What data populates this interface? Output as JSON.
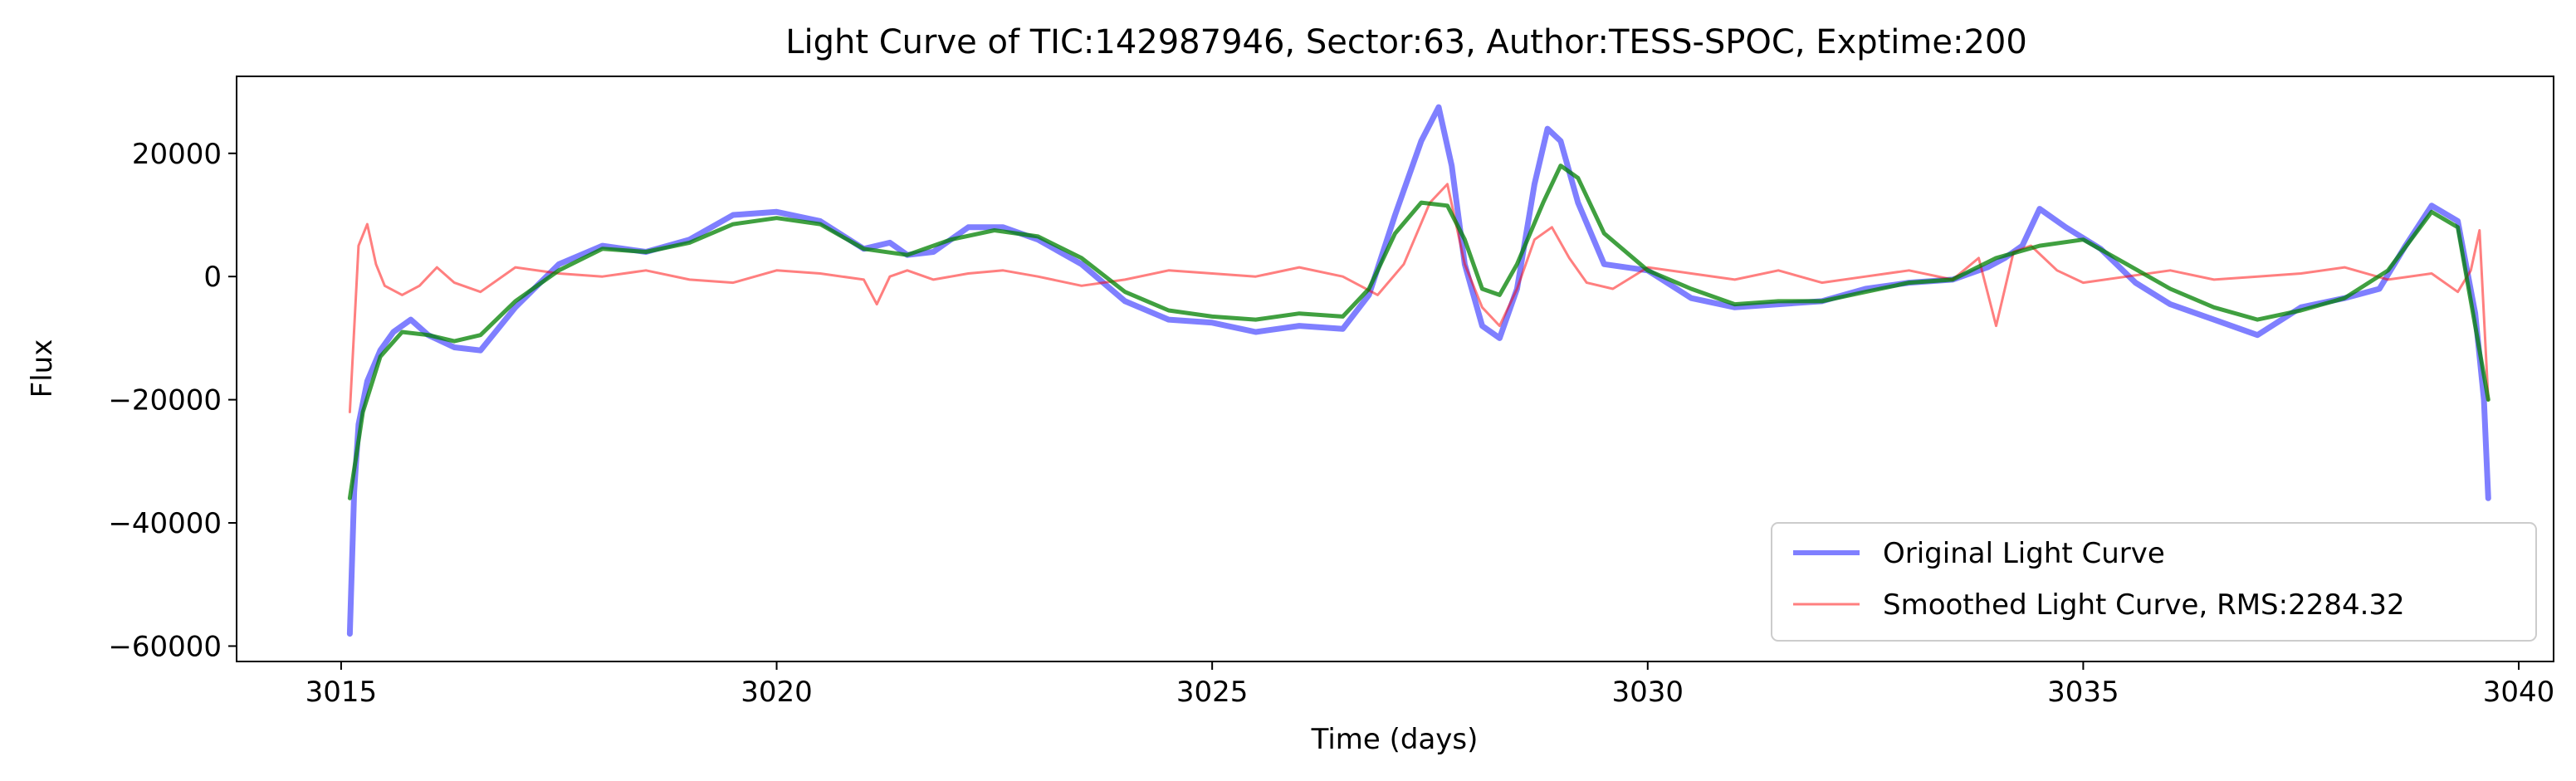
{
  "chart_data": {
    "type": "line",
    "title": "Light Curve of TIC:142987946, Sector:63, Author:TESS-SPOC, Exptime:200",
    "xlabel": "Time (days)",
    "ylabel": "Flux",
    "xlim": [
      3013.8,
      3040.4
    ],
    "ylim": [
      -62500,
      32500
    ],
    "xticks": [
      3015,
      3020,
      3025,
      3030,
      3035,
      3040
    ],
    "yticks": [
      -60000,
      -40000,
      -20000,
      0,
      20000
    ],
    "grid": false,
    "legend_position": "lower right",
    "series": [
      {
        "name": "Original Light Curve",
        "color": "#0000ff",
        "opacity": 0.5,
        "x": [
          3015.1,
          3015.15,
          3015.2,
          3015.3,
          3015.45,
          3015.6,
          3015.8,
          3016.0,
          3016.3,
          3016.6,
          3017.0,
          3017.5,
          3018.0,
          3018.5,
          3019.0,
          3019.5,
          3020.0,
          3020.5,
          3021.0,
          3021.3,
          3021.5,
          3021.8,
          3022.2,
          3022.6,
          3023.0,
          3023.5,
          3024.0,
          3024.5,
          3025.0,
          3025.5,
          3026.0,
          3026.5,
          3026.8,
          3027.1,
          3027.4,
          3027.6,
          3027.75,
          3027.9,
          3028.1,
          3028.3,
          3028.5,
          3028.7,
          3028.85,
          3029.0,
          3029.2,
          3029.5,
          3030.0,
          3030.5,
          3031.0,
          3031.5,
          3032.0,
          3032.5,
          3033.0,
          3033.5,
          3033.9,
          3034.1,
          3034.3,
          3034.5,
          3034.8,
          3035.2,
          3035.6,
          3036.0,
          3036.5,
          3037.0,
          3037.5,
          3038.0,
          3038.4,
          3038.7,
          3039.0,
          3039.3,
          3039.5,
          3039.6,
          3039.65
        ],
        "y": [
          -58000,
          -35000,
          -24000,
          -17000,
          -12000,
          -9000,
          -7000,
          -9500,
          -11500,
          -12000,
          -5000,
          2000,
          5000,
          4000,
          6000,
          10000,
          10500,
          9000,
          4500,
          5500,
          3500,
          4000,
          8000,
          8000,
          6000,
          2000,
          -4000,
          -7000,
          -7500,
          -9000,
          -8000,
          -8500,
          -3000,
          10000,
          22000,
          27500,
          18000,
          2000,
          -8000,
          -10000,
          -2000,
          15000,
          24000,
          22000,
          12000,
          2000,
          1000,
          -3500,
          -5000,
          -4500,
          -4000,
          -2000,
          -1000,
          -500,
          1500,
          3000,
          5000,
          11000,
          8000,
          4500,
          -1000,
          -4500,
          -7000,
          -9500,
          -5000,
          -3500,
          -2000,
          5000,
          11500,
          9000,
          -6000,
          -20000,
          -36000
        ]
      },
      {
        "name": "Smoothed Light Curve, RMS:2284.32",
        "color": "#ff0000",
        "opacity": 0.5,
        "x": [
          3015.1,
          3015.2,
          3015.3,
          3015.4,
          3015.5,
          3015.7,
          3015.9,
          3016.1,
          3016.3,
          3016.6,
          3017.0,
          3017.5,
          3018.0,
          3018.5,
          3019.0,
          3019.5,
          3020.0,
          3020.5,
          3021.0,
          3021.15,
          3021.3,
          3021.5,
          3021.8,
          3022.2,
          3022.6,
          3023.0,
          3023.5,
          3024.0,
          3024.5,
          3025.0,
          3025.5,
          3026.0,
          3026.5,
          3026.9,
          3027.2,
          3027.5,
          3027.7,
          3027.9,
          3028.1,
          3028.3,
          3028.5,
          3028.7,
          3028.9,
          3029.1,
          3029.3,
          3029.6,
          3030.0,
          3030.5,
          3031.0,
          3031.5,
          3032.0,
          3032.5,
          3033.0,
          3033.5,
          3033.8,
          3034.0,
          3034.2,
          3034.4,
          3034.7,
          3035.0,
          3035.5,
          3036.0,
          3036.5,
          3037.0,
          3037.5,
          3038.0,
          3038.5,
          3039.0,
          3039.3,
          3039.45,
          3039.55,
          3039.65
        ],
        "y": [
          -22000,
          5000,
          8500,
          2000,
          -1500,
          -3000,
          -1500,
          1500,
          -1000,
          -2500,
          1500,
          500,
          0,
          1000,
          -500,
          -1000,
          1000,
          500,
          -500,
          -4500,
          0,
          1000,
          -500,
          500,
          1000,
          0,
          -1500,
          -500,
          1000,
          500,
          0,
          1500,
          0,
          -3000,
          2000,
          12000,
          15000,
          2000,
          -5000,
          -8000,
          -2000,
          6000,
          8000,
          3000,
          -1000,
          -2000,
          1500,
          500,
          -500,
          1000,
          -1000,
          0,
          1000,
          -500,
          3000,
          -8000,
          4000,
          5000,
          1000,
          -1000,
          0,
          1000,
          -500,
          0,
          500,
          1500,
          -500,
          500,
          -2500,
          1000,
          7500,
          -20000
        ]
      },
      {
        "name": "",
        "color": "#008000",
        "opacity": 0.75,
        "x": [
          3015.1,
          3015.25,
          3015.45,
          3015.7,
          3016.0,
          3016.3,
          3016.6,
          3017.0,
          3017.5,
          3018.0,
          3018.5,
          3019.0,
          3019.5,
          3020.0,
          3020.5,
          3021.0,
          3021.5,
          3022.0,
          3022.5,
          3023.0,
          3023.5,
          3024.0,
          3024.5,
          3025.0,
          3025.5,
          3026.0,
          3026.5,
          3026.8,
          3027.1,
          3027.4,
          3027.7,
          3027.9,
          3028.1,
          3028.3,
          3028.5,
          3028.8,
          3029.0,
          3029.2,
          3029.5,
          3030.0,
          3030.5,
          3031.0,
          3031.5,
          3032.0,
          3032.5,
          3033.0,
          3033.5,
          3034.0,
          3034.5,
          3035.0,
          3035.5,
          3036.0,
          3036.5,
          3037.0,
          3037.5,
          3038.0,
          3038.5,
          3039.0,
          3039.3,
          3039.65
        ],
        "y": [
          -36000,
          -22000,
          -13000,
          -9000,
          -9500,
          -10500,
          -9500,
          -4000,
          1000,
          4500,
          4000,
          5500,
          8500,
          9500,
          8500,
          4500,
          3500,
          6000,
          7500,
          6500,
          3000,
          -2500,
          -5500,
          -6500,
          -7000,
          -6000,
          -6500,
          -2000,
          7000,
          12000,
          11500,
          6000,
          -2000,
          -3000,
          2000,
          12000,
          18000,
          16000,
          7000,
          1000,
          -2000,
          -4500,
          -4000,
          -4000,
          -2500,
          -1000,
          -500,
          3000,
          5000,
          6000,
          2000,
          -2000,
          -5000,
          -7000,
          -5500,
          -3500,
          1000,
          10500,
          8000,
          -20000
        ]
      }
    ],
    "legend": [
      {
        "label": "Original Light Curve",
        "color": "#0000ff"
      },
      {
        "label": "Smoothed Light Curve, RMS:2284.32",
        "color": "#ff0000"
      }
    ]
  }
}
